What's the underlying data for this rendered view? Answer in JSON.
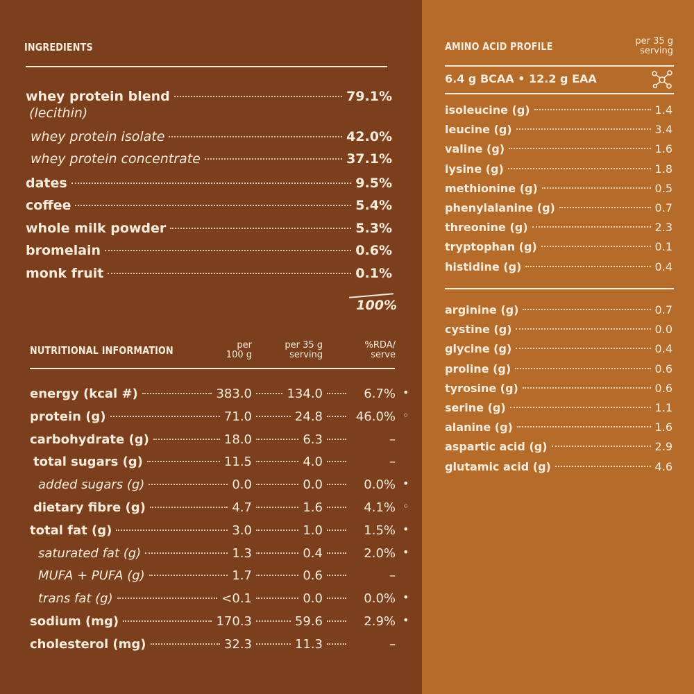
{
  "ingredients": {
    "title": "INGREDIENTS",
    "items": [
      {
        "name": "whey protein blend",
        "value": "79.1%",
        "note": "(lecithin)"
      },
      {
        "name": "whey protein isolate",
        "value": "42.0%"
      },
      {
        "name": "whey protein concentrate",
        "value": "37.1%"
      },
      {
        "name": "dates",
        "value": "9.5%"
      },
      {
        "name": "coffee",
        "value": "5.4%"
      },
      {
        "name": "whole milk powder",
        "value": "5.3%"
      },
      {
        "name": "bromelain",
        "value": "0.6%"
      },
      {
        "name": "monk fruit",
        "value": "0.1%"
      }
    ],
    "total": "100%"
  },
  "nutrition": {
    "title": "NUTRITIONAL INFORMATION",
    "columns": [
      [
        "per",
        "100 g"
      ],
      [
        "per 35 g",
        "serving"
      ],
      [
        "%RDA/",
        "serve"
      ]
    ],
    "rows": [
      {
        "name": "energy (kcal #)",
        "per100": "383.0",
        "per35": "134.0",
        "rda": "6.7%",
        "marker": "•"
      },
      {
        "name": "protein (g)",
        "per100": "71.0",
        "per35": "24.8",
        "rda": "46.0%",
        "marker": "◦"
      },
      {
        "name": "carbohydrate (g)",
        "per100": "18.0",
        "per35": "6.3",
        "rda": "–"
      },
      {
        "name": "total sugars (g)",
        "per100": "11.5",
        "per35": "4.0",
        "rda": "–"
      },
      {
        "name": "added sugars (g)",
        "per100": "0.0",
        "per35": "0.0",
        "rda": "0.0%",
        "marker": "•"
      },
      {
        "name": "dietary fibre (g)",
        "per100": "4.7",
        "per35": "1.6",
        "rda": "4.1%",
        "marker": "◦"
      },
      {
        "name": "total fat (g)",
        "per100": "3.0",
        "per35": "1.0",
        "rda": "1.5%",
        "marker": "•"
      },
      {
        "name": "saturated fat (g)",
        "per100": "1.3",
        "per35": "0.4",
        "rda": "2.0%",
        "marker": "•"
      },
      {
        "name": "MUFA + PUFA (g)",
        "per100": "1.7",
        "per35": "0.6",
        "rda": "–"
      },
      {
        "name": "trans fat (g)",
        "per100": "<0.1",
        "per35": "0.0",
        "rda": "0.0%",
        "marker": "•"
      },
      {
        "name": "sodium (mg)",
        "per100": "170.3",
        "per35": "59.6",
        "rda": "2.9%",
        "marker": "•"
      },
      {
        "name": "cholesterol (mg)",
        "per100": "32.3",
        "per35": "11.3",
        "rda": "–"
      }
    ]
  },
  "amino": {
    "title": "AMINO ACID PROFILE",
    "unit": [
      "per 35 g",
      "serving"
    ],
    "summary": "6.4 g BCAA • 12.2 g EAA",
    "groups": [
      [
        {
          "name": "isoleucine (g)",
          "value": "1.4"
        },
        {
          "name": "leucine (g)",
          "value": "3.4"
        },
        {
          "name": "valine (g)",
          "value": "1.6"
        },
        {
          "name": "lysine (g)",
          "value": "1.8"
        },
        {
          "name": "methionine (g)",
          "value": "0.5"
        },
        {
          "name": "phenylalanine (g)",
          "value": "0.7"
        },
        {
          "name": "threonine (g)",
          "value": "2.3"
        },
        {
          "name": "tryptophan (g)",
          "value": "0.1"
        },
        {
          "name": "histidine (g)",
          "value": "0.4"
        }
      ],
      [
        {
          "name": "arginine (g)",
          "value": "0.7"
        },
        {
          "name": "cystine (g)",
          "value": "0.0"
        },
        {
          "name": "glycine (g)",
          "value": "0.4"
        },
        {
          "name": "proline (g)",
          "value": "0.6"
        },
        {
          "name": "tyrosine (g)",
          "value": "0.6"
        },
        {
          "name": "serine (g)",
          "value": "1.1"
        },
        {
          "name": "alanine (g)",
          "value": "1.6"
        },
        {
          "name": "aspartic acid (g)",
          "value": "2.9"
        },
        {
          "name": "glutamic acid (g)",
          "value": "4.6"
        }
      ]
    ]
  }
}
